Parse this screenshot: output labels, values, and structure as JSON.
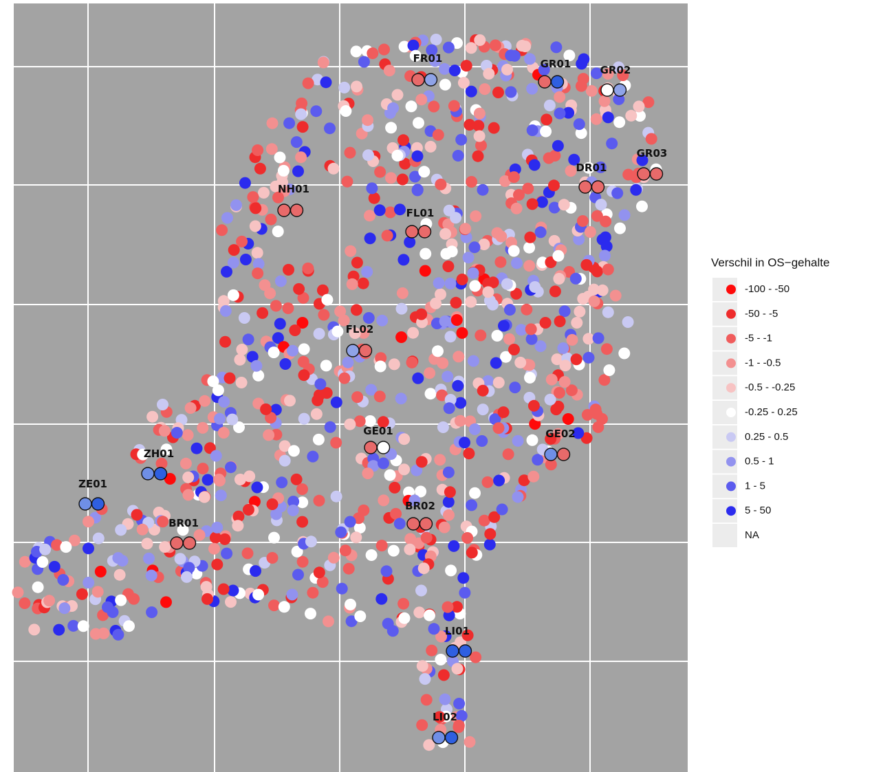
{
  "legend": {
    "title": "Verschil in OS−gehalte",
    "items": [
      {
        "label": "-100 - -50",
        "color": "#ff0a0a"
      },
      {
        "label": "-50 - -5",
        "color": "#ee2c2c"
      },
      {
        "label": "-5 - -1",
        "color": "#f05c5c"
      },
      {
        "label": "-1 - -0.5",
        "color": "#f39090"
      },
      {
        "label": "-0.5 - -0.25",
        "color": "#f7c3c3"
      },
      {
        "label": "-0.25 - 0.25",
        "color": "#ffffff"
      },
      {
        "label": "0.25 - 0.5",
        "color": "#c9c9f3"
      },
      {
        "label": "0.5 - 1",
        "color": "#9292ef"
      },
      {
        "label": "1 - 5",
        "color": "#5b5bee"
      },
      {
        "label": "5 - 50",
        "color": "#2b2bee"
      },
      {
        "label": "NA",
        "color": null
      }
    ]
  },
  "sites": [
    {
      "label": "FR01",
      "colors": [
        "#e86a6a",
        "#8fa3e8"
      ]
    },
    {
      "label": "GR01",
      "colors": [
        "#e86a6a",
        "#2f5fe0"
      ]
    },
    {
      "label": "GR02",
      "colors": [
        "#ffffff",
        "#8fa3e8"
      ]
    },
    {
      "label": "GR03",
      "colors": [
        "#e86a6a",
        "#e86a6a"
      ]
    },
    {
      "label": "DR01",
      "colors": [
        "#e86a6a",
        "#e86a6a"
      ]
    },
    {
      "label": "NH01",
      "colors": [
        "#e86a6a",
        "#e86a6a"
      ]
    },
    {
      "label": "FL01",
      "colors": [
        "#e86a6a",
        "#e86a6a"
      ]
    },
    {
      "label": "FL02",
      "colors": [
        "#8fa3e8",
        "#e86a6a"
      ]
    },
    {
      "label": "GE01",
      "colors": [
        "#e86a6a",
        "#ffffff"
      ]
    },
    {
      "label": "GE02",
      "colors": [
        "#6f8fe6",
        "#e86a6a"
      ]
    },
    {
      "label": "ZH01",
      "colors": [
        "#6f8fe6",
        "#2f5fe0"
      ]
    },
    {
      "label": "ZE01",
      "colors": [
        "#6f8fe6",
        "#2f5fe0"
      ]
    },
    {
      "label": "BR01",
      "colors": [
        "#e86a6a",
        "#e86a6a"
      ]
    },
    {
      "label": "BR02",
      "colors": [
        "#e86a6a",
        "#e86a6a"
      ]
    },
    {
      "label": "LI01",
      "colors": [
        "#2f5fe0",
        "#2f5fe0"
      ]
    },
    {
      "label": "LI02",
      "colors": [
        "#6f8fe6",
        "#2f5fe0"
      ]
    }
  ]
}
